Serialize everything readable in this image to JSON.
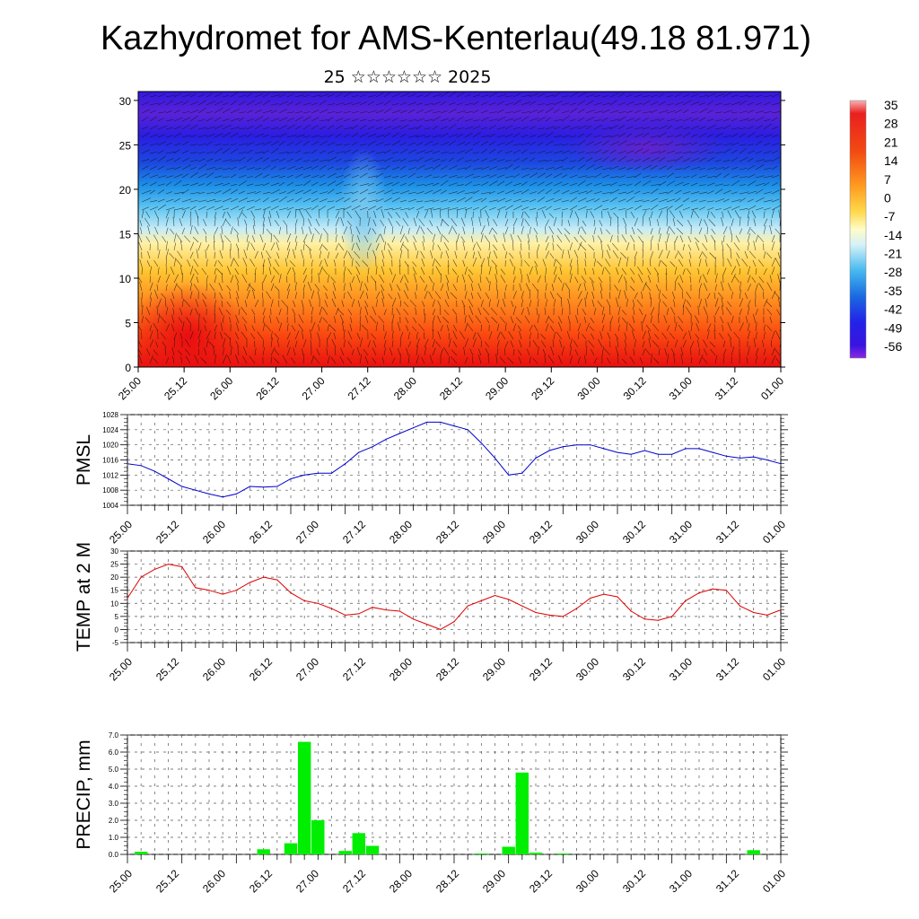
{
  "title": "Kazhydromet for AMS-Kenterlau(49.18 81.971)",
  "subtitle": "25 ☆☆☆☆☆☆ 2025",
  "colors": {
    "pmsl_line": "#0000cc",
    "temp_line": "#dd0000",
    "precip_bar": "#00ee00"
  },
  "colorbar": {
    "labels": [
      "35",
      "28",
      "21",
      "14",
      "7",
      "0",
      "-7",
      "-14",
      "-21",
      "-28",
      "-35",
      "-42",
      "-49",
      "-56"
    ]
  },
  "chart_data": [
    {
      "type": "heatmap",
      "name": "cross-section",
      "ylim": [
        0,
        31
      ],
      "y_ticks": [
        "0",
        "5",
        "10",
        "15",
        "20",
        "25",
        "30"
      ],
      "x_ticks": [
        "25.00",
        "25.12",
        "26.00",
        "26.12",
        "27.00",
        "27.12",
        "28.00",
        "28.12",
        "29.00",
        "29.12",
        "30.00",
        "30.12",
        "31.00",
        "31.12",
        "01.00"
      ],
      "value_range": [
        -60,
        36
      ],
      "color_scale": "temperature: blue-purple (cold) to red (warm)"
    },
    {
      "type": "line",
      "ylabel": "PMSL",
      "ylim": [
        1004,
        1028
      ],
      "y_ticks": [
        "1028",
        "1024",
        "1020",
        "1016",
        "1012",
        "1008",
        "1004"
      ],
      "x_ticks": [
        "25.00",
        "25.12",
        "26.00",
        "26.12",
        "27.00",
        "27.12",
        "28.00",
        "28.12",
        "29.00",
        "29.12",
        "30.00",
        "30.12",
        "31.00",
        "31.12",
        "01.00"
      ],
      "x_range": [
        0,
        6.0
      ],
      "x": [
        0,
        0.125,
        0.25,
        0.375,
        0.5,
        0.625,
        0.75,
        0.875,
        1.0,
        1.125,
        1.25,
        1.375,
        1.5,
        1.625,
        1.75,
        1.875,
        2.0,
        2.125,
        2.25,
        2.375,
        2.5,
        2.625,
        2.75,
        2.875,
        3.0,
        3.125,
        3.25,
        3.375,
        3.5,
        3.625,
        3.75,
        3.875,
        4.0,
        4.125,
        4.25,
        4.375,
        4.5,
        4.625,
        4.75,
        4.875,
        5.0,
        5.125,
        5.25,
        5.375,
        5.5,
        5.625,
        5.75,
        5.875,
        6.0
      ],
      "values": [
        1015,
        1014.5,
        1013,
        1011,
        1009,
        1008,
        1007,
        1006.2,
        1007,
        1009,
        1008.8,
        1009,
        1011,
        1012,
        1012.5,
        1012.5,
        1015,
        1018,
        1019.5,
        1021.5,
        1023,
        1024.5,
        1026,
        1026,
        1025,
        1024,
        1020.5,
        1016.5,
        1012,
        1012.5,
        1016.5,
        1018.5,
        1019.5,
        1020,
        1020,
        1019,
        1018,
        1017.5,
        1018.5,
        1017.5,
        1017.5,
        1019,
        1019,
        1018,
        1017,
        1016.5,
        1016.8,
        1016,
        1015
      ]
    },
    {
      "type": "line",
      "ylabel": "TEMP at 2 M",
      "ylim": [
        -5,
        30
      ],
      "y_ticks": [
        "30",
        "25",
        "20",
        "15",
        "10",
        "5",
        "0",
        "-5"
      ],
      "x_ticks": [
        "25.00",
        "25.12",
        "26.00",
        "26.12",
        "27.00",
        "27.12",
        "28.00",
        "28.12",
        "29.00",
        "29.12",
        "30.00",
        "30.12",
        "31.00",
        "31.12",
        "01.00"
      ],
      "x_range": [
        0,
        6.0
      ],
      "x": [
        0,
        0.125,
        0.25,
        0.375,
        0.5,
        0.625,
        0.75,
        0.875,
        1.0,
        1.125,
        1.25,
        1.375,
        1.5,
        1.625,
        1.75,
        1.875,
        2.0,
        2.125,
        2.25,
        2.375,
        2.5,
        2.625,
        2.75,
        2.875,
        3.0,
        3.125,
        3.25,
        3.375,
        3.5,
        3.625,
        3.75,
        3.875,
        4.0,
        4.125,
        4.25,
        4.375,
        4.5,
        4.625,
        4.75,
        4.875,
        5.0,
        5.125,
        5.25,
        5.375,
        5.5,
        5.625,
        5.75,
        5.875,
        6.0
      ],
      "values": [
        12,
        20,
        23,
        25,
        24,
        16,
        15,
        13.5,
        15,
        18,
        20,
        19,
        14,
        11,
        10,
        8,
        5.5,
        6,
        8.5,
        7.5,
        7,
        4,
        2,
        0,
        3,
        9,
        11,
        13,
        11.5,
        9,
        6.5,
        5.5,
        5,
        8,
        12,
        13.5,
        12.5,
        7,
        4,
        3.5,
        5,
        11,
        14,
        15.5,
        15,
        9,
        6.5,
        5.5,
        7.5
      ]
    },
    {
      "type": "bar",
      "ylabel": "PRECIP, mm",
      "ylim": [
        0,
        7.0
      ],
      "y_ticks": [
        "7.0",
        "6.0",
        "5.0",
        "4.0",
        "3.0",
        "2.0",
        "1.0",
        "0.0"
      ],
      "x_ticks": [
        "25.00",
        "25.12",
        "26.00",
        "26.12",
        "27.00",
        "27.12",
        "28.00",
        "28.12",
        "29.00",
        "29.12",
        "30.00",
        "30.12",
        "31.00",
        "31.12",
        "01.00"
      ],
      "bins": [
        {
          "x": 0.125,
          "value": 0.15
        },
        {
          "x": 1.25,
          "value": 0.3
        },
        {
          "x": 1.5,
          "value": 0.65
        },
        {
          "x": 1.625,
          "value": 6.6
        },
        {
          "x": 1.75,
          "value": 2.0
        },
        {
          "x": 2.0,
          "value": 0.2
        },
        {
          "x": 2.125,
          "value": 1.25
        },
        {
          "x": 2.25,
          "value": 0.5
        },
        {
          "x": 3.25,
          "value": 0.05
        },
        {
          "x": 3.5,
          "value": 0.45
        },
        {
          "x": 3.625,
          "value": 4.8
        },
        {
          "x": 3.75,
          "value": 0.1
        },
        {
          "x": 4.0,
          "value": 0.05
        },
        {
          "x": 5.75,
          "value": 0.25
        }
      ]
    }
  ]
}
